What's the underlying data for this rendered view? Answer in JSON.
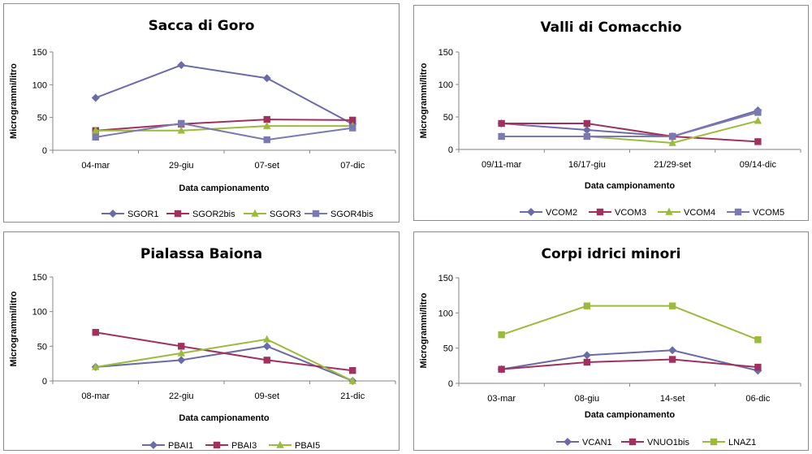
{
  "chart_data": [
    {
      "type": "line",
      "title": "Sacca di Goro",
      "xlabel": "Data campionamento",
      "ylabel": "Microgrammi/litro",
      "ylim": [
        0,
        150
      ],
      "yticks": [
        0,
        50,
        100,
        150
      ],
      "categories": [
        "04-mar",
        "29-giu",
        "07-set",
        "07-dic"
      ],
      "legend": "bottom",
      "series": [
        {
          "name": "SGOR1",
          "color": "#6b6ba8",
          "marker": "diamond",
          "values": [
            80,
            130,
            110,
            40
          ]
        },
        {
          "name": "SGOR2bis",
          "color": "#a0305e",
          "marker": "square",
          "values": [
            30,
            40,
            47,
            46
          ]
        },
        {
          "name": "SGOR3",
          "color": "#9bbb3c",
          "marker": "triangle",
          "values": [
            30,
            30,
            37,
            37
          ]
        },
        {
          "name": "SGOR4bis",
          "color": "#7a7ab0",
          "marker": "square",
          "values": [
            20,
            41,
            16,
            34
          ]
        }
      ]
    },
    {
      "type": "line",
      "title": "Valli di Comacchio",
      "xlabel": "Data campionamento",
      "ylabel": "Microgrammi/litro",
      "ylim": [
        0,
        150
      ],
      "yticks": [
        0,
        50,
        100,
        150
      ],
      "categories": [
        "09/11-mar",
        "16/17-giu",
        "21/29-set",
        "09/14-dic"
      ],
      "legend": "bottom",
      "series": [
        {
          "name": "VCOM2",
          "color": "#6b6ba8",
          "marker": "diamond",
          "values": [
            40,
            30,
            20,
            60
          ]
        },
        {
          "name": "VCOM3",
          "color": "#a0305e",
          "marker": "square",
          "values": [
            40,
            40,
            20,
            12
          ]
        },
        {
          "name": "VCOM4",
          "color": "#9bbb3c",
          "marker": "triangle",
          "values": [
            20,
            20,
            10,
            44
          ]
        },
        {
          "name": "VCOM5",
          "color": "#7a7ab0",
          "marker": "square",
          "values": [
            20,
            20,
            20,
            57
          ]
        }
      ]
    },
    {
      "type": "line",
      "title": "Pialassa Baiona",
      "xlabel": "Data campionamento",
      "ylabel": "Microgrammi/litro",
      "ylim": [
        0,
        150
      ],
      "yticks": [
        0,
        50,
        100,
        150
      ],
      "categories": [
        "08-mar",
        "22-giu",
        "09-set",
        "21-dic"
      ],
      "legend": "bottom",
      "series": [
        {
          "name": "PBAI1",
          "color": "#6b6ba8",
          "marker": "diamond",
          "values": [
            20,
            30,
            50,
            0
          ]
        },
        {
          "name": "PBAI3",
          "color": "#a0305e",
          "marker": "square",
          "values": [
            70,
            50,
            30,
            15
          ]
        },
        {
          "name": "PBAI5",
          "color": "#9bbb3c",
          "marker": "triangle",
          "values": [
            20,
            40,
            60,
            0
          ]
        }
      ]
    },
    {
      "type": "line",
      "title": "Corpi idrici minori",
      "xlabel": "Data campionamento",
      "ylabel": "Microgrammi/litro",
      "ylim": [
        0,
        150
      ],
      "yticks": [
        0,
        50,
        100,
        150
      ],
      "categories": [
        "03-mar",
        "08-giu",
        "14-set",
        "06-dic"
      ],
      "legend": "bottom",
      "series": [
        {
          "name": "VCAN1",
          "color": "#6b6ba8",
          "marker": "diamond",
          "values": [
            20,
            40,
            47,
            18
          ]
        },
        {
          "name": "VNUO1bis",
          "color": "#a0305e",
          "marker": "square",
          "values": [
            20,
            30,
            34,
            23
          ]
        },
        {
          "name": "LNAZ1",
          "color": "#9bbb3c",
          "marker": "square",
          "values": [
            69,
            110,
            110,
            62
          ]
        }
      ]
    }
  ]
}
